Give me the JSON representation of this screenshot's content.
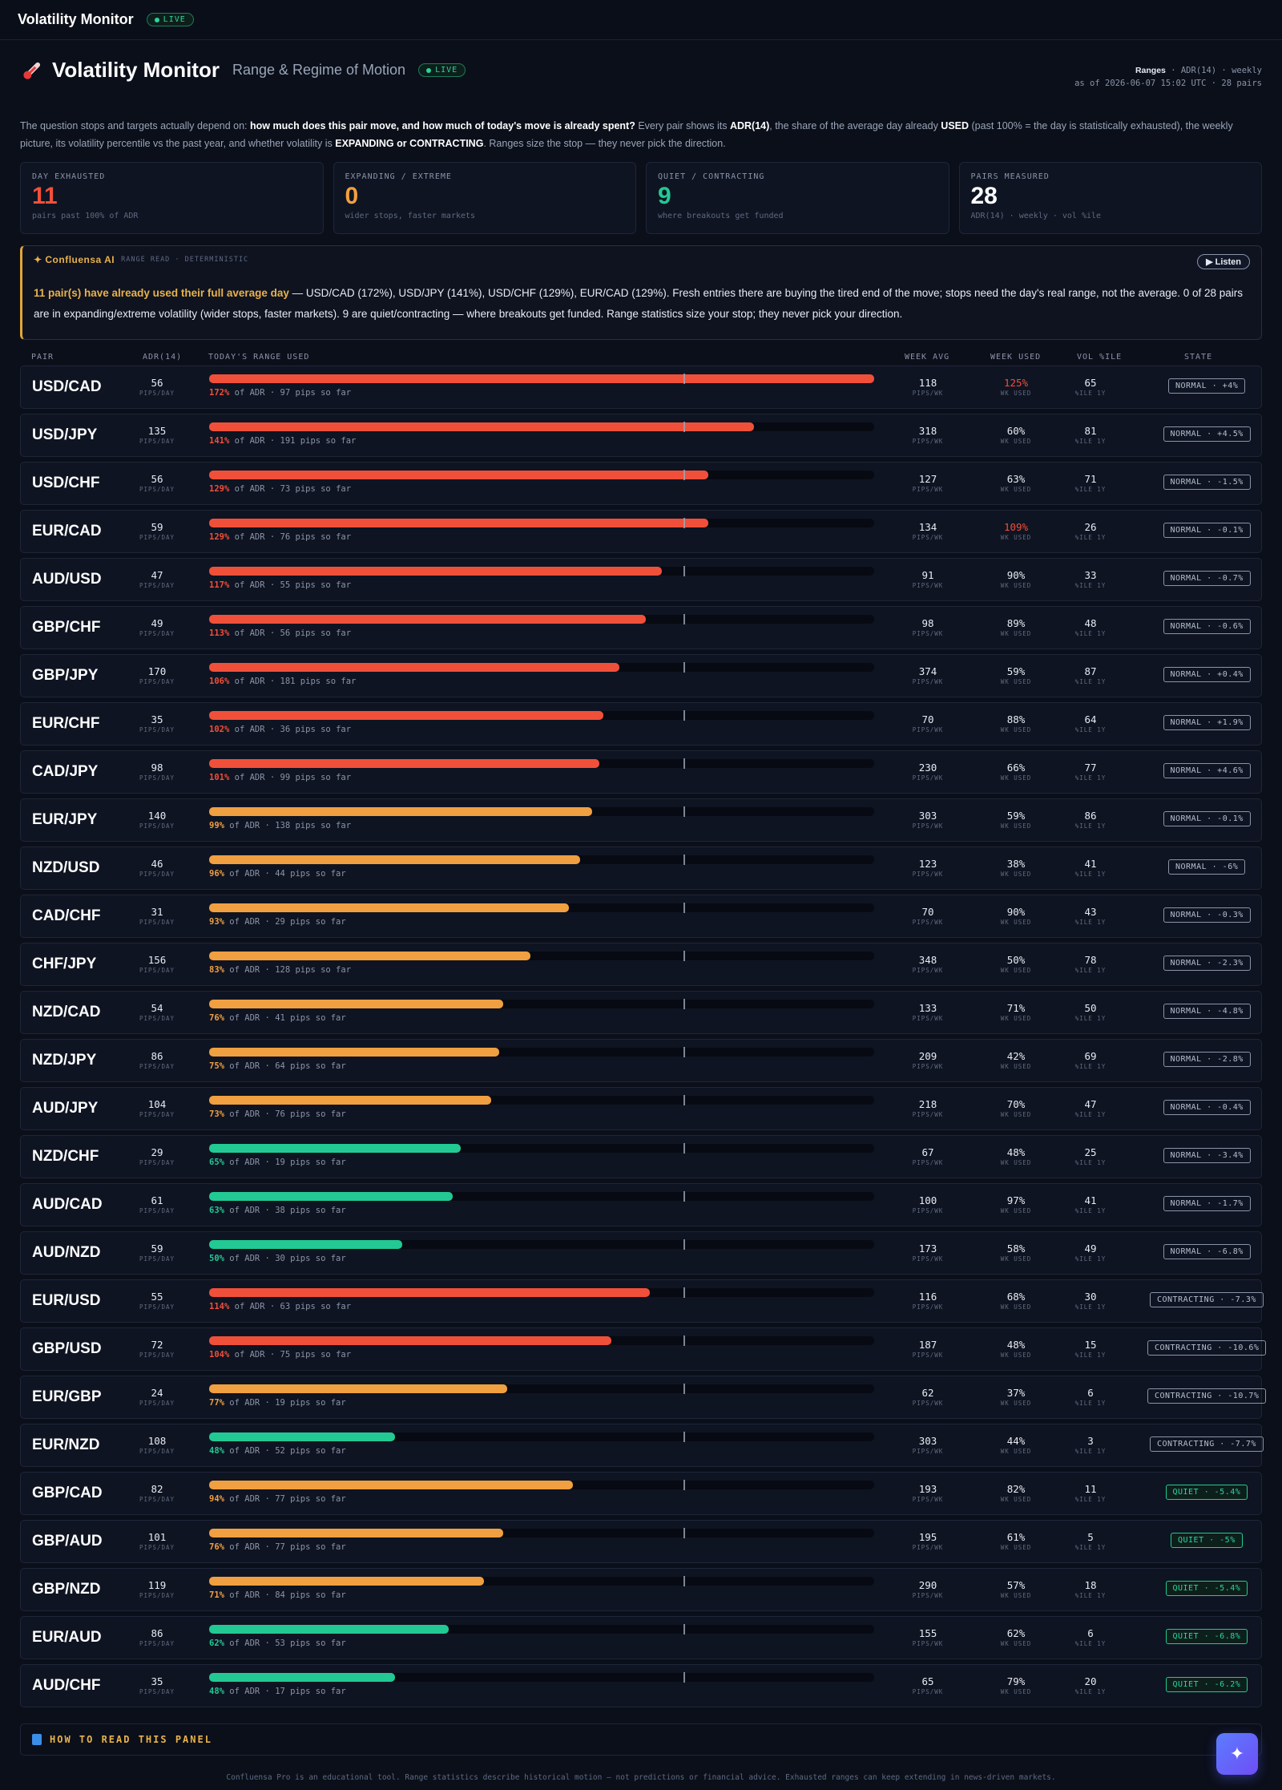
{
  "topbar": {
    "title": "Volatility Monitor",
    "live": "LIVE"
  },
  "header": {
    "title": "Volatility Monitor",
    "subtitle": "Range & Regime of Motion",
    "live": "LIVE",
    "meta_bold": "Ranges",
    "meta_rest": " · ADR(14) · weekly",
    "meta_line2": "as of 2026-06-07 15:02 UTC · 28 pairs"
  },
  "intro": {
    "p1": "The question stops and targets actually depend on: ",
    "b1": "how much does this pair move, and how much of today's move is already spent?",
    "p2": " Every pair shows its ",
    "b2": "ADR(14)",
    "p3": ", the share of the average day already ",
    "b3": "USED",
    "p4": " (past 100% = the day is statistically exhausted), the weekly picture, its volatility percentile vs the past year, and whether volatility is ",
    "b4": "EXPANDING or CONTRACTING",
    "p5": ". Ranges size the stop — they never pick the direction."
  },
  "stats": [
    {
      "label": "DAY EXHAUSTED",
      "value": "11",
      "note": "pairs past 100% of ADR",
      "color": "#f0503a"
    },
    {
      "label": "EXPANDING / EXTREME",
      "value": "0",
      "note": "wider stops, faster markets",
      "color": "#f0a040"
    },
    {
      "label": "QUIET / CONTRACTING",
      "value": "9",
      "note": "where breakouts get funded",
      "color": "#22c993"
    },
    {
      "label": "PAIRS MEASURED",
      "value": "28",
      "note": "ADR(14) · weekly · vol %ile",
      "color": "#ffffff"
    }
  ],
  "ai": {
    "name": "✦ Confluensa AI",
    "tag": "RANGE READ · DETERMINISTIC",
    "listen": "▶ Listen",
    "highlight": "11 pair(s) have already used their full average day",
    "text": " — USD/CAD (172%), USD/JPY (141%), USD/CHF (129%), EUR/CAD (129%). Fresh entries there are buying the tired end of the move; stops need the day's real range, not the average. 0 of 28 pairs are in expanding/extreme volatility (wider stops, faster markets). 9 are quiet/contracting — where breakouts get funded. Range statistics size your stop; they never pick your direction."
  },
  "table": {
    "headers": {
      "pair": "PAIR",
      "adr": "ADR(14)",
      "range": "TODAY'S RANGE USED",
      "wavg": "WEEK AVG",
      "wused": "WEEK USED",
      "vol": "VOL %ILE",
      "state": "STATE"
    },
    "units": {
      "adr": "PIPS/DAY",
      "wavg": "PIPS/WK",
      "wused": "WK USED",
      "vol": "%ILE 1Y"
    },
    "of_adr": " of ADR · ",
    "so_far": " pips so far",
    "rows": [
      {
        "pair": "USD/CAD",
        "adr": "56",
        "used_pct": 172,
        "pct_label": "172%",
        "pips": "97",
        "wavg": "118",
        "wused": "125%",
        "wused_hot": true,
        "vol": "65",
        "state": "NORMAL · +4%",
        "kind": "normal"
      },
      {
        "pair": "USD/JPY",
        "adr": "135",
        "used_pct": 141,
        "pct_label": "141%",
        "pips": "191",
        "wavg": "318",
        "wused": "60%",
        "wused_hot": false,
        "vol": "81",
        "state": "NORMAL · +4.5%",
        "kind": "normal"
      },
      {
        "pair": "USD/CHF",
        "adr": "56",
        "used_pct": 129,
        "pct_label": "129%",
        "pips": "73",
        "wavg": "127",
        "wused": "63%",
        "wused_hot": false,
        "vol": "71",
        "state": "NORMAL · -1.5%",
        "kind": "normal"
      },
      {
        "pair": "EUR/CAD",
        "adr": "59",
        "used_pct": 129,
        "pct_label": "129%",
        "pips": "76",
        "wavg": "134",
        "wused": "109%",
        "wused_hot": true,
        "vol": "26",
        "state": "NORMAL · -0.1%",
        "kind": "normal"
      },
      {
        "pair": "AUD/USD",
        "adr": "47",
        "used_pct": 117,
        "pct_label": "117%",
        "pips": "55",
        "wavg": "91",
        "wused": "90%",
        "wused_hot": false,
        "vol": "33",
        "state": "NORMAL · -0.7%",
        "kind": "normal"
      },
      {
        "pair": "GBP/CHF",
        "adr": "49",
        "used_pct": 113,
        "pct_label": "113%",
        "pips": "56",
        "wavg": "98",
        "wused": "89%",
        "wused_hot": false,
        "vol": "48",
        "state": "NORMAL · -0.6%",
        "kind": "normal"
      },
      {
        "pair": "GBP/JPY",
        "adr": "170",
        "used_pct": 106,
        "pct_label": "106%",
        "pips": "181",
        "wavg": "374",
        "wused": "59%",
        "wused_hot": false,
        "vol": "87",
        "state": "NORMAL · +0.4%",
        "kind": "normal"
      },
      {
        "pair": "EUR/CHF",
        "adr": "35",
        "used_pct": 102,
        "pct_label": "102%",
        "pips": "36",
        "wavg": "70",
        "wused": "88%",
        "wused_hot": false,
        "vol": "64",
        "state": "NORMAL · +1.9%",
        "kind": "normal"
      },
      {
        "pair": "CAD/JPY",
        "adr": "98",
        "used_pct": 101,
        "pct_label": "101%",
        "pips": "99",
        "wavg": "230",
        "wused": "66%",
        "wused_hot": false,
        "vol": "77",
        "state": "NORMAL · +4.6%",
        "kind": "normal"
      },
      {
        "pair": "EUR/JPY",
        "adr": "140",
        "used_pct": 99,
        "pct_label": "99%",
        "pips": "138",
        "wavg": "303",
        "wused": "59%",
        "wused_hot": false,
        "vol": "86",
        "state": "NORMAL · -0.1%",
        "kind": "normal"
      },
      {
        "pair": "NZD/USD",
        "adr": "46",
        "used_pct": 96,
        "pct_label": "96%",
        "pips": "44",
        "wavg": "123",
        "wused": "38%",
        "wused_hot": false,
        "vol": "41",
        "state": "NORMAL · -6%",
        "kind": "normal"
      },
      {
        "pair": "CAD/CHF",
        "adr": "31",
        "used_pct": 93,
        "pct_label": "93%",
        "pips": "29",
        "wavg": "70",
        "wused": "90%",
        "wused_hot": false,
        "vol": "43",
        "state": "NORMAL · -0.3%",
        "kind": "normal"
      },
      {
        "pair": "CHF/JPY",
        "adr": "156",
        "used_pct": 83,
        "pct_label": "83%",
        "pips": "128",
        "wavg": "348",
        "wused": "50%",
        "wused_hot": false,
        "vol": "78",
        "state": "NORMAL · -2.3%",
        "kind": "normal"
      },
      {
        "pair": "NZD/CAD",
        "adr": "54",
        "used_pct": 76,
        "pct_label": "76%",
        "pips": "41",
        "wavg": "133",
        "wused": "71%",
        "wused_hot": false,
        "vol": "50",
        "state": "NORMAL · -4.8%",
        "kind": "normal"
      },
      {
        "pair": "NZD/JPY",
        "adr": "86",
        "used_pct": 75,
        "pct_label": "75%",
        "pips": "64",
        "wavg": "209",
        "wused": "42%",
        "wused_hot": false,
        "vol": "69",
        "state": "NORMAL · -2.8%",
        "kind": "normal"
      },
      {
        "pair": "AUD/JPY",
        "adr": "104",
        "used_pct": 73,
        "pct_label": "73%",
        "pips": "76",
        "wavg": "218",
        "wused": "70%",
        "wused_hot": false,
        "vol": "47",
        "state": "NORMAL · -0.4%",
        "kind": "normal"
      },
      {
        "pair": "NZD/CHF",
        "adr": "29",
        "used_pct": 65,
        "pct_label": "65%",
        "pips": "19",
        "wavg": "67",
        "wused": "48%",
        "wused_hot": false,
        "vol": "25",
        "state": "NORMAL · -3.4%",
        "kind": "normal"
      },
      {
        "pair": "AUD/CAD",
        "adr": "61",
        "used_pct": 63,
        "pct_label": "63%",
        "pips": "38",
        "wavg": "100",
        "wused": "97%",
        "wused_hot": false,
        "vol": "41",
        "state": "NORMAL · -1.7%",
        "kind": "normal"
      },
      {
        "pair": "AUD/NZD",
        "adr": "59",
        "used_pct": 50,
        "pct_label": "50%",
        "pips": "30",
        "wavg": "173",
        "wused": "58%",
        "wused_hot": false,
        "vol": "49",
        "state": "NORMAL · -6.8%",
        "kind": "normal"
      },
      {
        "pair": "EUR/USD",
        "adr": "55",
        "used_pct": 114,
        "pct_label": "114%",
        "pips": "63",
        "wavg": "116",
        "wused": "68%",
        "wused_hot": false,
        "vol": "30",
        "state": "CONTRACTING · -7.3%",
        "kind": "contracting"
      },
      {
        "pair": "GBP/USD",
        "adr": "72",
        "used_pct": 104,
        "pct_label": "104%",
        "pips": "75",
        "wavg": "187",
        "wused": "48%",
        "wused_hot": false,
        "vol": "15",
        "state": "CONTRACTING · -10.6%",
        "kind": "contracting"
      },
      {
        "pair": "EUR/GBP",
        "adr": "24",
        "used_pct": 77,
        "pct_label": "77%",
        "pips": "19",
        "wavg": "62",
        "wused": "37%",
        "wused_hot": false,
        "vol": "6",
        "state": "CONTRACTING · -10.7%",
        "kind": "contracting"
      },
      {
        "pair": "EUR/NZD",
        "adr": "108",
        "used_pct": 48,
        "pct_label": "48%",
        "pips": "52",
        "wavg": "303",
        "wused": "44%",
        "wused_hot": false,
        "vol": "3",
        "state": "CONTRACTING · -7.7%",
        "kind": "contracting"
      },
      {
        "pair": "GBP/CAD",
        "adr": "82",
        "used_pct": 94,
        "pct_label": "94%",
        "pips": "77",
        "wavg": "193",
        "wused": "82%",
        "wused_hot": false,
        "vol": "11",
        "state": "QUIET · -5.4%",
        "kind": "quiet"
      },
      {
        "pair": "GBP/AUD",
        "adr": "101",
        "used_pct": 76,
        "pct_label": "76%",
        "pips": "77",
        "wavg": "195",
        "wused": "61%",
        "wused_hot": false,
        "vol": "5",
        "state": "QUIET · -5%",
        "kind": "quiet"
      },
      {
        "pair": "GBP/NZD",
        "adr": "119",
        "used_pct": 71,
        "pct_label": "71%",
        "pips": "84",
        "wavg": "290",
        "wused": "57%",
        "wused_hot": false,
        "vol": "18",
        "state": "QUIET · -5.4%",
        "kind": "quiet"
      },
      {
        "pair": "EUR/AUD",
        "adr": "86",
        "used_pct": 62,
        "pct_label": "62%",
        "pips": "53",
        "wavg": "155",
        "wused": "62%",
        "wused_hot": false,
        "vol": "6",
        "state": "QUIET · -6.8%",
        "kind": "quiet"
      },
      {
        "pair": "AUD/CHF",
        "adr": "35",
        "used_pct": 48,
        "pct_label": "48%",
        "pips": "17",
        "wavg": "65",
        "wused": "79%",
        "wused_hot": false,
        "vol": "20",
        "state": "QUIET · -6.2%",
        "kind": "quiet"
      }
    ]
  },
  "colors": {
    "hot": "#f0503a",
    "warm": "#f0a040",
    "cool": "#22c993",
    "normal_border": "#8a94a8",
    "contracting_border": "#8a94a8",
    "quiet_border": "#22c993"
  },
  "howto": {
    "label": "HOW TO READ THIS PANEL"
  },
  "footer": {
    "text": "Confluensa Pro is an educational tool. Range statistics describe historical motion — not predictions or financial advice. Exhausted ranges can keep extending in news-driven markets."
  },
  "fab": {
    "icon": "✦"
  }
}
